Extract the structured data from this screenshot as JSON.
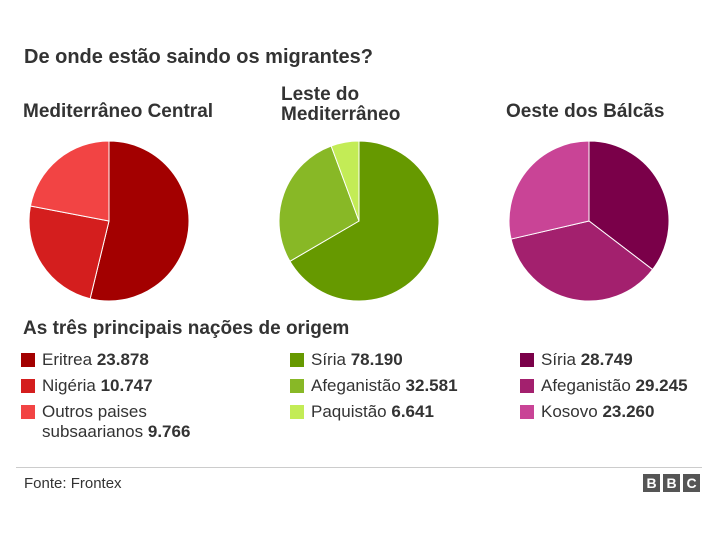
{
  "title": "De onde estão saindo os migrantes?",
  "subtitle": "As três principais nações de origem",
  "source": "Fonte: Frontex",
  "logo": [
    "B",
    "B",
    "C"
  ],
  "chart_data": [
    {
      "type": "pie",
      "title": "Mediterrâneo Central",
      "slices": [
        {
          "label": "Eritrea",
          "value": 23878,
          "display": "23.878",
          "color": "#a30000"
        },
        {
          "label": "Nigéria",
          "value": 10747,
          "display": "10.747",
          "color": "#d41e1e"
        },
        {
          "label": "Outros paises subsaarianos",
          "value": 9766,
          "display": "9.766",
          "color": "#f24444"
        }
      ]
    },
    {
      "type": "pie",
      "title": "Leste do Mediterrâneo",
      "slices": [
        {
          "label": "Síria",
          "value": 78190,
          "display": "78.190",
          "color": "#669900"
        },
        {
          "label": "Afeganistão",
          "value": 32581,
          "display": "32.581",
          "color": "#88b826"
        },
        {
          "label": "Paquistão",
          "value": 6641,
          "display": "6.641",
          "color": "#c3ec56"
        }
      ]
    },
    {
      "type": "pie",
      "title": "Oeste dos Bálcãs",
      "slices": [
        {
          "label": "Síria",
          "value": 28749,
          "display": "28.749",
          "color": "#7a0049"
        },
        {
          "label": "Afeganistão",
          "value": 29245,
          "display": "29.245",
          "color": "#a3206e"
        },
        {
          "label": "Kosovo",
          "value": 23260,
          "display": "23.260",
          "color": "#c94496"
        }
      ]
    }
  ]
}
